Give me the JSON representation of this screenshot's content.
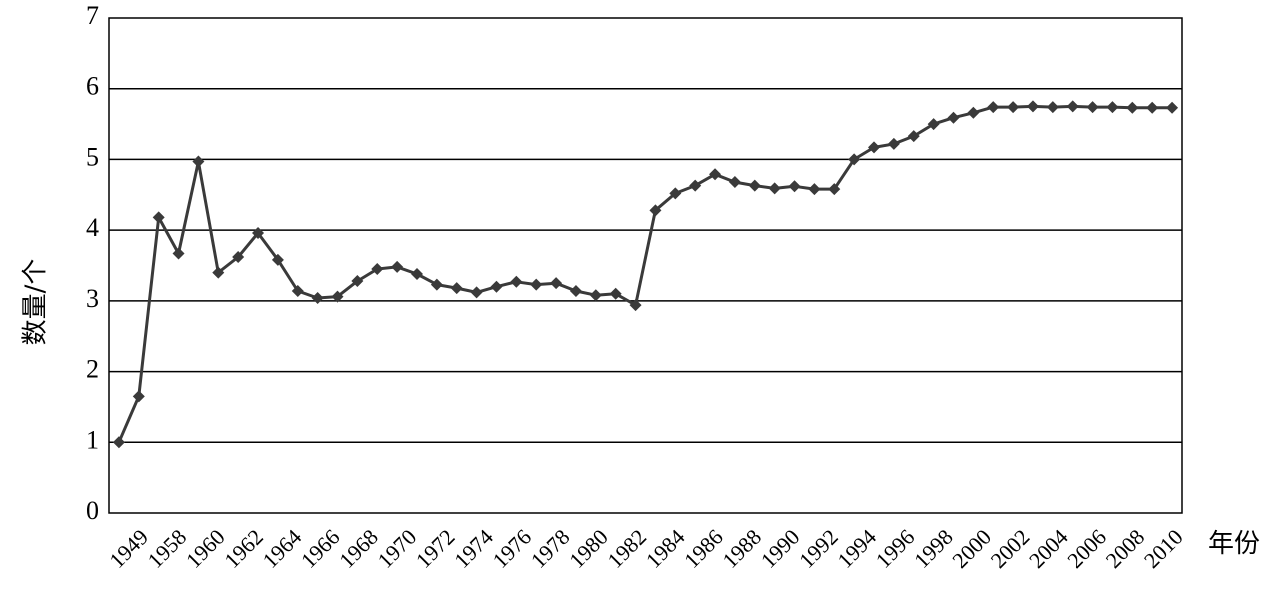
{
  "chart_data": {
    "type": "line",
    "xlabel": "年份",
    "ylabel": "数量/个",
    "ylim": [
      0,
      7
    ],
    "yticks": [
      0,
      1,
      2,
      3,
      4,
      5,
      6,
      7
    ],
    "grid": true,
    "x": [
      "1949",
      "1957",
      "1958",
      "1959",
      "1960",
      "1961",
      "1962",
      "1963",
      "1964",
      "1965",
      "1966",
      "1967",
      "1968",
      "1969",
      "1970",
      "1971",
      "1972",
      "1973",
      "1974",
      "1975",
      "1976",
      "1977",
      "1978",
      "1979",
      "1980",
      "1981",
      "1982",
      "1983",
      "1984",
      "1985",
      "1986",
      "1987",
      "1988",
      "1989",
      "1990",
      "1991",
      "1992",
      "1993",
      "1994",
      "1995",
      "1996",
      "1997",
      "1998",
      "1999",
      "2000",
      "2001",
      "2002",
      "2003",
      "2004",
      "2005",
      "2006",
      "2007",
      "2008",
      "2009"
    ],
    "xtick_labels": [
      "1949",
      "1958",
      "1960",
      "1962",
      "1964",
      "1966",
      "1968",
      "1970",
      "1972",
      "1974",
      "1976",
      "1978",
      "1980",
      "1982",
      "1984",
      "1986",
      "1988",
      "1990",
      "1992",
      "1994",
      "1996",
      "1998",
      "2000",
      "2002",
      "2004",
      "2006",
      "2008",
      "2010"
    ],
    "series": [
      {
        "values": [
          1.0,
          1.65,
          4.18,
          3.67,
          4.97,
          3.4,
          3.62,
          3.96,
          3.58,
          3.14,
          3.04,
          3.06,
          3.28,
          3.45,
          3.48,
          3.38,
          3.23,
          3.18,
          3.12,
          3.2,
          3.27,
          3.23,
          3.25,
          3.14,
          3.08,
          3.1,
          2.94,
          4.28,
          4.52,
          4.63,
          4.79,
          4.68,
          4.63,
          4.59,
          4.62,
          4.58,
          4.58,
          5.0,
          5.17,
          5.22,
          5.33,
          5.5,
          5.59,
          5.66,
          5.74,
          5.74,
          5.75,
          5.74,
          5.75,
          5.74,
          5.74,
          5.73,
          5.73,
          5.73
        ],
        "color": "#3a3a3a"
      }
    ]
  }
}
